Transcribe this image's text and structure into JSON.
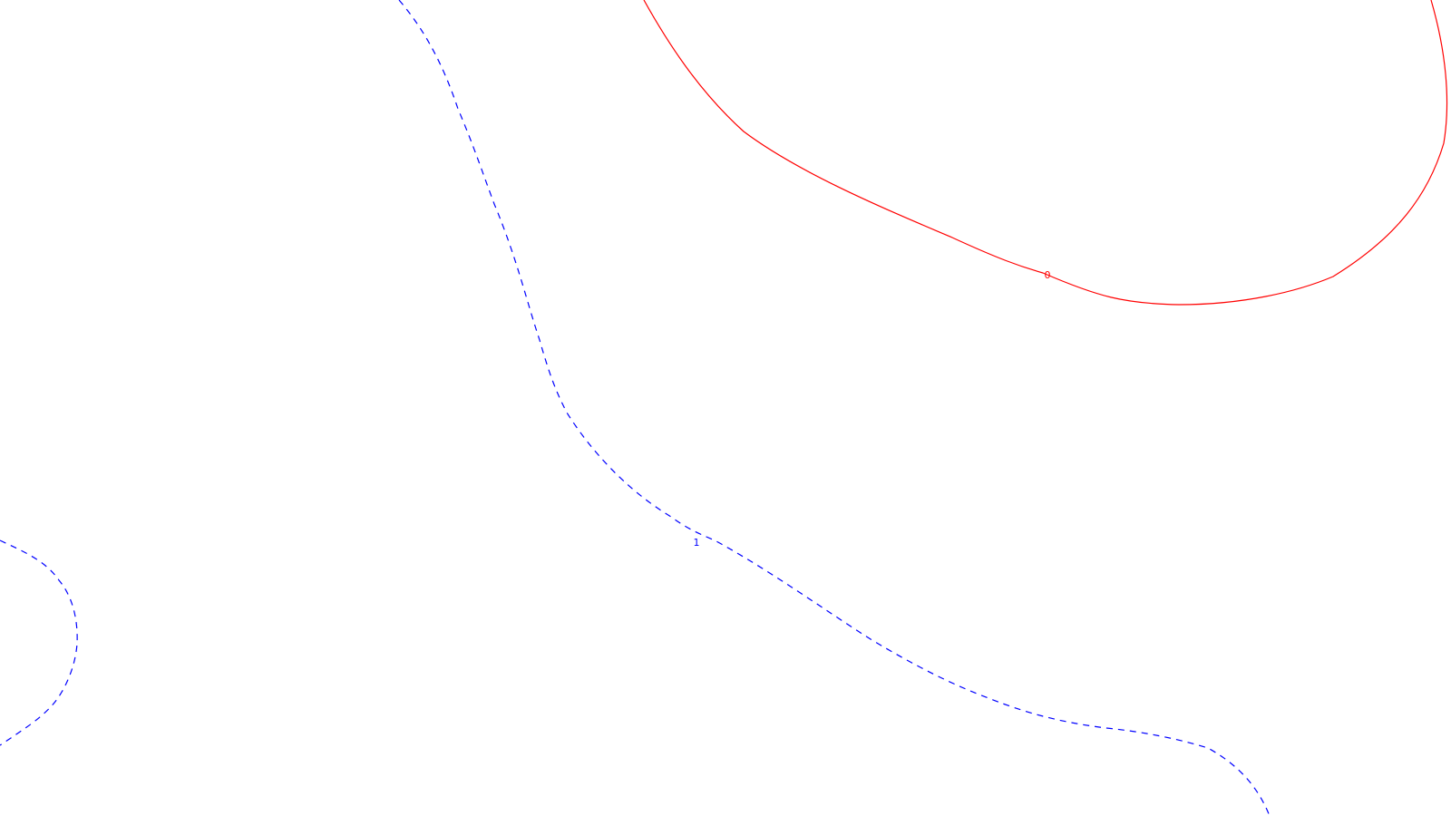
{
  "chart_data": {
    "type": "contour",
    "title": "",
    "xlabel": "",
    "ylabel": "",
    "grid": false,
    "series": [
      {
        "name": "0",
        "level": 0,
        "color": "#ff0000",
        "style": "solid",
        "label": "0"
      },
      {
        "name": "1",
        "level": 1,
        "color": "#0000ff",
        "style": "dashed",
        "label": "1"
      }
    ]
  }
}
